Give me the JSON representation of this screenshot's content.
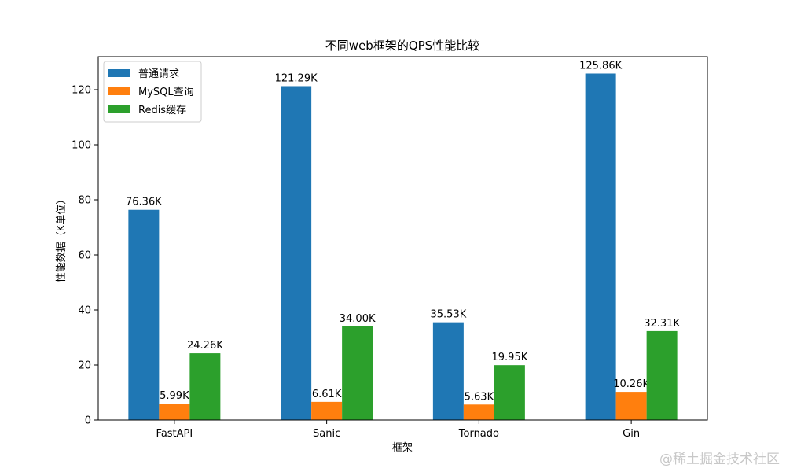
{
  "chart_data": {
    "type": "bar",
    "title": "不同web框架的QPS性能比较",
    "xlabel": "框架",
    "ylabel": "性能数据（K单位）",
    "categories": [
      "FastAPI",
      "Sanic",
      "Tornado",
      "Gin"
    ],
    "series": [
      {
        "name": "普通请求",
        "color": "#1f77b4",
        "values": [
          76.36,
          121.29,
          35.53,
          125.86
        ],
        "labels": [
          "76.36K",
          "121.29K",
          "35.53K",
          "125.86K"
        ]
      },
      {
        "name": "MySQL查询",
        "color": "#ff7f0e",
        "values": [
          5.99,
          6.61,
          5.63,
          10.26
        ],
        "labels": [
          "5.99K",
          "6.61K",
          "5.63K",
          "10.26K"
        ]
      },
      {
        "name": "Redis缓存",
        "color": "#2ca02c",
        "values": [
          24.26,
          34.0,
          19.95,
          32.31
        ],
        "labels": [
          "24.26K",
          "34.00K",
          "19.95K",
          "32.31K"
        ]
      }
    ],
    "ylim": [
      0,
      132
    ],
    "yticks": [
      0,
      20,
      40,
      60,
      80,
      100,
      120
    ],
    "legend_position": "top-left",
    "grid": false
  },
  "watermark": "@稀土掘金技术社区"
}
